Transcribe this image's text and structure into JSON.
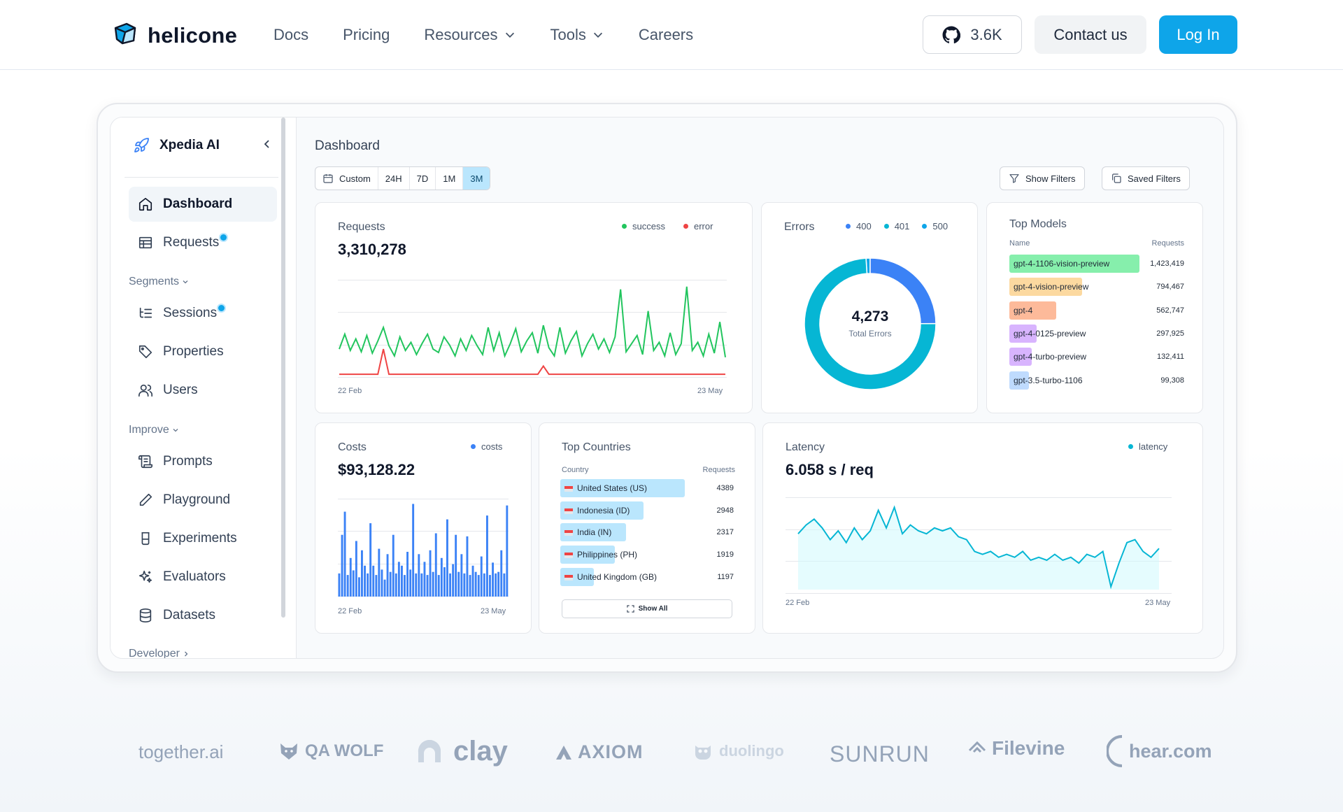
{
  "nav": {
    "brand": "helicone",
    "links": [
      {
        "label": "Docs",
        "dropdown": false
      },
      {
        "label": "Pricing",
        "dropdown": false
      },
      {
        "label": "Resources",
        "dropdown": true
      },
      {
        "label": "Tools",
        "dropdown": true
      },
      {
        "label": "Careers",
        "dropdown": false
      }
    ],
    "github_stars": "3.6K",
    "contact_label": "Contact us",
    "login_label": "Log In"
  },
  "sidebar": {
    "org_name": "Xpedia AI",
    "items_top": [
      {
        "label": "Dashboard",
        "icon": "home-icon",
        "active": true
      },
      {
        "label": "Requests",
        "icon": "table-icon",
        "badge": true
      }
    ],
    "section_segments": "Segments",
    "items_segments": [
      {
        "label": "Sessions",
        "icon": "list-tree-icon",
        "badge": true
      },
      {
        "label": "Properties",
        "icon": "tag-icon"
      },
      {
        "label": "Users",
        "icon": "users-icon"
      }
    ],
    "section_improve": "Improve",
    "items_improve": [
      {
        "label": "Prompts",
        "icon": "scroll-icon"
      },
      {
        "label": "Playground",
        "icon": "pencil-icon"
      },
      {
        "label": "Experiments",
        "icon": "flask-icon"
      },
      {
        "label": "Evaluators",
        "icon": "sparkles-icon"
      },
      {
        "label": "Datasets",
        "icon": "database-icon"
      }
    ],
    "section_developer": "Developer"
  },
  "dashboard": {
    "title": "Dashboard",
    "ranges": [
      {
        "label": "Custom",
        "active": false
      },
      {
        "label": "24H",
        "active": false
      },
      {
        "label": "7D",
        "active": false
      },
      {
        "label": "1M",
        "active": false
      },
      {
        "label": "3M",
        "active": true
      }
    ],
    "show_filters": "Show Filters",
    "saved_filters": "Saved Filters",
    "requests": {
      "title": "Requests",
      "value": "3,310,278",
      "legend": [
        {
          "label": "success",
          "color": "#22c55e"
        },
        {
          "label": "error",
          "color": "#ef4444"
        }
      ],
      "x_start": "22 Feb",
      "x_end": "23 May"
    },
    "errors": {
      "title": "Errors",
      "legend": [
        {
          "label": "400",
          "color": "#3b82f6"
        },
        {
          "label": "401",
          "color": "#06b6d4"
        },
        {
          "label": "500",
          "color": "#0ea5e9"
        }
      ],
      "total": "4,273",
      "total_label": "Total Errors"
    },
    "top_models": {
      "title": "Top Models",
      "col_name": "Name",
      "col_requests": "Requests",
      "rows": [
        {
          "name": "gpt-4-1106-vision-preview",
          "requests": "1,423,419",
          "share": 1.0,
          "color": "#86efac"
        },
        {
          "name": "gpt-4-vision-preview",
          "requests": "794,467",
          "share": 0.56,
          "color": "#fcd9a0"
        },
        {
          "name": "gpt-4",
          "requests": "562,747",
          "share": 0.36,
          "color": "#fdba9a"
        },
        {
          "name": "gpt-4-0125-preview",
          "requests": "297,925",
          "share": 0.21,
          "color": "#d8b4fe"
        },
        {
          "name": "gpt-4-turbo-preview",
          "requests": "132,411",
          "share": 0.17,
          "color": "#d8b4fe"
        },
        {
          "name": "gpt-3.5-turbo-1106",
          "requests": "99,308",
          "share": 0.15,
          "color": "#bfdbfe"
        }
      ]
    },
    "costs": {
      "title": "Costs",
      "value": "$93,128.22",
      "legend": [
        {
          "label": "costs",
          "color": "#3b82f6"
        }
      ],
      "x_start": "22 Feb",
      "x_end": "23 May"
    },
    "top_countries": {
      "title": "Top Countries",
      "col_country": "Country",
      "col_requests": "Requests",
      "rows": [
        {
          "name": "United States (US)",
          "requests": "4389",
          "share": 1.0
        },
        {
          "name": "Indonesia (ID)",
          "requests": "2948",
          "share": 0.67
        },
        {
          "name": "India (IN)",
          "requests": "2317",
          "share": 0.53
        },
        {
          "name": "Philippines (PH)",
          "requests": "1919",
          "share": 0.44
        },
        {
          "name": "United Kingdom (GB)",
          "requests": "1197",
          "share": 0.27
        }
      ],
      "show_all": "Show All"
    },
    "latency": {
      "title": "Latency",
      "value": "6.058 s / req",
      "legend": [
        {
          "label": "latency",
          "color": "#06b6d4"
        }
      ],
      "x_start": "22 Feb",
      "x_end": "23 May"
    }
  },
  "logos": [
    "together.ai",
    "QA WOLF",
    "clay",
    "AXIOM",
    "duolingo",
    "SUNRUN",
    "Filevine",
    "hear.com"
  ],
  "chart_data": [
    {
      "type": "line",
      "title": "Requests",
      "series": [
        {
          "name": "success",
          "values": [
            40,
            62,
            38,
            55,
            36,
            60,
            34,
            52,
            72,
            45,
            30,
            58,
            38,
            50,
            32,
            48,
            62,
            40,
            35,
            58,
            46,
            30,
            55,
            38,
            60,
            45,
            32,
            72,
            38,
            64,
            30,
            48,
            70,
            36,
            52,
            64,
            34,
            75,
            42,
            30,
            72,
            34,
            52,
            66,
            30,
            48,
            62,
            40,
            55,
            35,
            58,
            128,
            36,
            48,
            60,
            32,
            96,
            38,
            50,
            30,
            64,
            32,
            48,
            132,
            38,
            50,
            30,
            62,
            34,
            80,
            28
          ]
        },
        {
          "name": "error",
          "values": [
            3,
            3,
            3,
            3,
            3,
            3,
            3,
            3,
            40,
            3,
            3,
            3,
            3,
            3,
            3,
            3,
            3,
            3,
            3,
            3,
            3,
            3,
            3,
            3,
            3,
            3,
            3,
            3,
            3,
            3,
            3,
            3,
            3,
            3,
            3,
            3,
            3,
            15,
            3,
            3,
            3,
            3,
            3,
            3,
            3,
            3,
            3,
            3,
            3,
            3,
            3,
            3,
            3,
            3,
            3,
            3,
            3,
            3,
            3,
            3,
            3,
            3,
            3,
            3,
            3,
            3,
            3,
            3,
            3,
            3,
            3
          ]
        }
      ]
    },
    {
      "type": "pie",
      "title": "Errors",
      "categories": [
        "400",
        "401",
        "500"
      ],
      "values": [
        1066,
        3164,
        43
      ]
    },
    {
      "type": "bar",
      "title": "Costs",
      "series": [
        {
          "name": "costs",
          "values": [
            30,
            80,
            110,
            28,
            50,
            34,
            72,
            25,
            60,
            40,
            30,
            95,
            40,
            28,
            62,
            35,
            22,
            55,
            32,
            80,
            30,
            45,
            40,
            28,
            58,
            35,
            120,
            30,
            55,
            30,
            45,
            28,
            60,
            32,
            82,
            28,
            50,
            38,
            100,
            30,
            42,
            80,
            32,
            55,
            30,
            78,
            28,
            40,
            32,
            28,
            52,
            30,
            105,
            28,
            44,
            30,
            32,
            60,
            30,
            118
          ]
        }
      ]
    },
    {
      "type": "area",
      "title": "Latency",
      "series": [
        {
          "name": "latency",
          "values": [
            6.4,
            6.7,
            6.9,
            6.6,
            6.2,
            6.5,
            6.1,
            6.6,
            6.2,
            6.5,
            7.2,
            6.6,
            7.3,
            6.4,
            6.7,
            6.5,
            6.4,
            6.6,
            6.5,
            6.6,
            6.3,
            6.2,
            5.8,
            5.7,
            5.8,
            5.6,
            5.7,
            5.6,
            5.8,
            5.5,
            5.6,
            5.5,
            5.7,
            5.5,
            5.6,
            5.4,
            5.7,
            5.6,
            5.8,
            4.6,
            5.4,
            6.1,
            6.2,
            5.8,
            5.6,
            5.9
          ]
        }
      ]
    }
  ]
}
